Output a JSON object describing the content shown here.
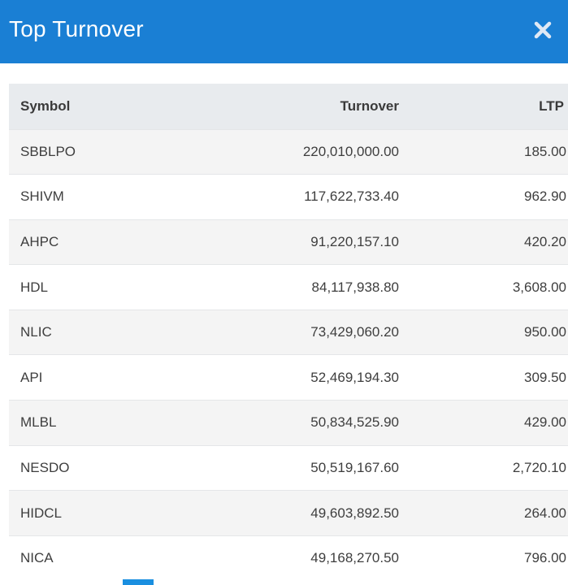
{
  "dialog": {
    "title": "Top Turnover",
    "close_icon": "close-icon"
  },
  "table": {
    "columns": [
      "Symbol",
      "Turnover",
      "LTP"
    ],
    "rows": [
      {
        "symbol": "SBBLPO",
        "turnover": "220,010,000.00",
        "ltp": "185.00"
      },
      {
        "symbol": "SHIVM",
        "turnover": "117,622,733.40",
        "ltp": "962.90"
      },
      {
        "symbol": "AHPC",
        "turnover": "91,220,157.10",
        "ltp": "420.20"
      },
      {
        "symbol": "HDL",
        "turnover": "84,117,938.80",
        "ltp": "3,608.00"
      },
      {
        "symbol": "NLIC",
        "turnover": "73,429,060.20",
        "ltp": "950.00"
      },
      {
        "symbol": "API",
        "turnover": "52,469,194.30",
        "ltp": "309.50"
      },
      {
        "symbol": "MLBL",
        "turnover": "50,834,525.90",
        "ltp": "429.00"
      },
      {
        "symbol": "NESDO",
        "turnover": "50,519,167.60",
        "ltp": "2,720.10"
      },
      {
        "symbol": "HIDCL",
        "turnover": "49,603,892.50",
        "ltp": "264.00"
      },
      {
        "symbol": "NICA",
        "turnover": "49,168,270.50",
        "ltp": "796.00"
      }
    ]
  },
  "colors": {
    "header_bg": "#1a7fd4",
    "header_text": "#ffffff",
    "table_header_bg": "#e8ebee",
    "row_odd_bg": "#f4f4f4",
    "row_even_bg": "#ffffff"
  }
}
